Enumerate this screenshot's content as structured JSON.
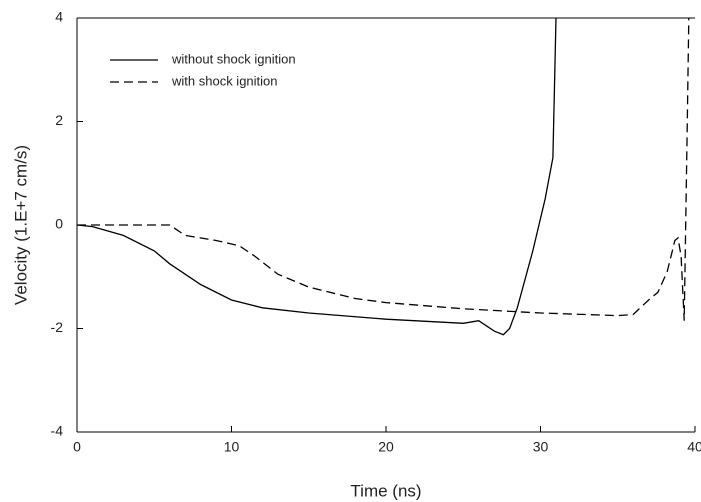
{
  "chart_data": {
    "type": "line",
    "x_label": "Time (ns)",
    "y_label": "Velocity (1.E+7 cm/s)",
    "xlim": [
      0,
      40
    ],
    "xticks": [
      0,
      10,
      20,
      30,
      40
    ],
    "ylim": [
      -4,
      4
    ],
    "yticks": [
      -4,
      -2,
      0,
      2,
      4
    ],
    "series": [
      {
        "name": "without shock ignition",
        "color": "#000000",
        "dash": "solid",
        "x": [
          0,
          1,
          3,
          5,
          6,
          8,
          10,
          12,
          15,
          20,
          25,
          26,
          27,
          27.6,
          28,
          28.5,
          29.5,
          30.3,
          30.8,
          31
        ],
        "values": [
          0,
          -0.03,
          -0.2,
          -0.5,
          -0.75,
          -1.15,
          -1.45,
          -1.6,
          -1.7,
          -1.82,
          -1.9,
          -1.85,
          -2.05,
          -2.12,
          -2.0,
          -1.6,
          -0.5,
          0.5,
          1.3,
          4
        ]
      },
      {
        "name": "with shock ignition",
        "color": "#000000",
        "dash": "dashed",
        "x": [
          0,
          6,
          7,
          9,
          10.5,
          11.5,
          13,
          15,
          18,
          20,
          25,
          30,
          35,
          36,
          37,
          37.6,
          38.2,
          38.7,
          38.9,
          39.1,
          39.3,
          39.5,
          39.6
        ],
        "values": [
          0,
          0,
          -0.2,
          -0.3,
          -0.4,
          -0.6,
          -0.95,
          -1.2,
          -1.42,
          -1.5,
          -1.62,
          -1.7,
          -1.75,
          -1.73,
          -1.45,
          -1.3,
          -0.9,
          -0.3,
          -0.25,
          -0.6,
          -1.85,
          2,
          4
        ]
      }
    ]
  }
}
